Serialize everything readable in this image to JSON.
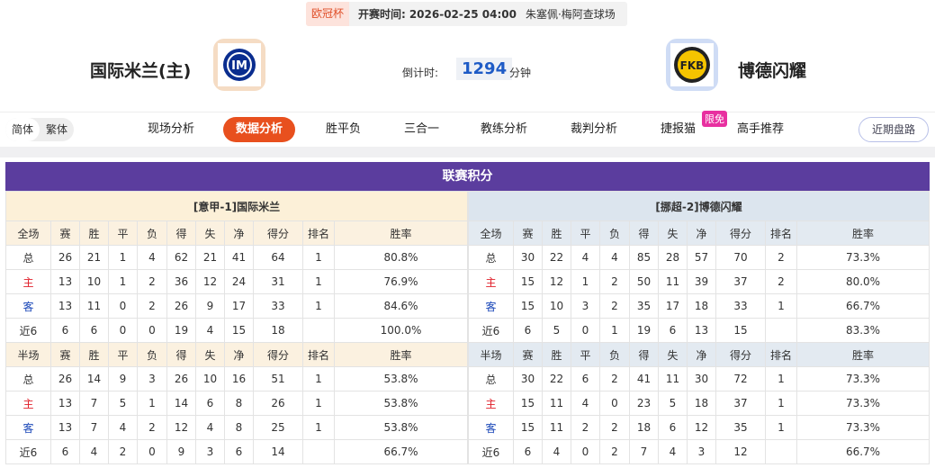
{
  "header": {
    "league": "欧冠杯",
    "time_label": "开赛时间:",
    "time": "2026-02-25 04:00",
    "venue": "朱塞佩·梅阿查球场",
    "home_team": "国际米兰(主)",
    "away_team": "博德闪耀",
    "countdown_label": "倒计时:",
    "countdown": "1294",
    "countdown_unit": "分钟"
  },
  "nav": {
    "languages": [
      "简体",
      "繁体"
    ],
    "tabs": [
      "现场分析",
      "数据分析",
      "胜平负",
      "三合一",
      "教练分析",
      "裁判分析",
      "捷报猫",
      "高手推荐"
    ],
    "badge": "限免",
    "button": "近期盘路"
  },
  "section_title": "联赛积分",
  "tables": [
    {
      "title": "[意甲-1]国际米兰",
      "full": {
        "header": [
          "全场",
          "赛",
          "胜",
          "平",
          "负",
          "得",
          "失",
          "净",
          "得分",
          "排名",
          "胜率"
        ],
        "rows": [
          [
            "总",
            "26",
            "21",
            "1",
            "4",
            "62",
            "21",
            "41",
            "64",
            "1",
            "80.8%"
          ],
          [
            "主",
            "13",
            "10",
            "1",
            "2",
            "36",
            "12",
            "24",
            "31",
            "1",
            "76.9%"
          ],
          [
            "客",
            "13",
            "11",
            "0",
            "2",
            "26",
            "9",
            "17",
            "33",
            "1",
            "84.6%"
          ],
          [
            "近6",
            "6",
            "6",
            "0",
            "0",
            "19",
            "4",
            "15",
            "18",
            null,
            "100.0%"
          ]
        ]
      },
      "half": {
        "header": [
          "半场",
          "赛",
          "胜",
          "平",
          "负",
          "得",
          "失",
          "净",
          "得分",
          "排名",
          "胜率"
        ],
        "rows": [
          [
            "总",
            "26",
            "14",
            "9",
            "3",
            "26",
            "10",
            "16",
            "51",
            "1",
            "53.8%"
          ],
          [
            "主",
            "13",
            "7",
            "5",
            "1",
            "14",
            "6",
            "8",
            "26",
            "1",
            "53.8%"
          ],
          [
            "客",
            "13",
            "7",
            "4",
            "2",
            "12",
            "4",
            "8",
            "25",
            "1",
            "53.8%"
          ],
          [
            "近6",
            "6",
            "4",
            "2",
            "0",
            "9",
            "3",
            "6",
            "14",
            null,
            "66.7%"
          ]
        ]
      }
    },
    {
      "title": "[挪超-2]博德闪耀",
      "full": {
        "header": [
          "全场",
          "赛",
          "胜",
          "平",
          "负",
          "得",
          "失",
          "净",
          "得分",
          "排名",
          "胜率"
        ],
        "rows": [
          [
            "总",
            "30",
            "22",
            "4",
            "4",
            "85",
            "28",
            "57",
            "70",
            "2",
            "73.3%"
          ],
          [
            "主",
            "15",
            "12",
            "1",
            "2",
            "50",
            "11",
            "39",
            "37",
            "2",
            "80.0%"
          ],
          [
            "客",
            "15",
            "10",
            "3",
            "2",
            "35",
            "17",
            "18",
            "33",
            "1",
            "66.7%"
          ],
          [
            "近6",
            "6",
            "5",
            "0",
            "1",
            "19",
            "6",
            "13",
            "15",
            null,
            "83.3%"
          ]
        ]
      },
      "half": {
        "header": [
          "半场",
          "赛",
          "胜",
          "平",
          "负",
          "得",
          "失",
          "净",
          "得分",
          "排名",
          "胜率"
        ],
        "rows": [
          [
            "总",
            "30",
            "22",
            "6",
            "2",
            "41",
            "11",
            "30",
            "72",
            "1",
            "73.3%"
          ],
          [
            "主",
            "15",
            "11",
            "4",
            "0",
            "23",
            "5",
            "18",
            "37",
            "1",
            "73.3%"
          ],
          [
            "客",
            "15",
            "11",
            "2",
            "2",
            "18",
            "6",
            "12",
            "35",
            "1",
            "73.3%"
          ],
          [
            "近6",
            "6",
            "4",
            "0",
            "2",
            "7",
            "4",
            "3",
            "12",
            null,
            "66.7%"
          ]
        ]
      }
    }
  ]
}
